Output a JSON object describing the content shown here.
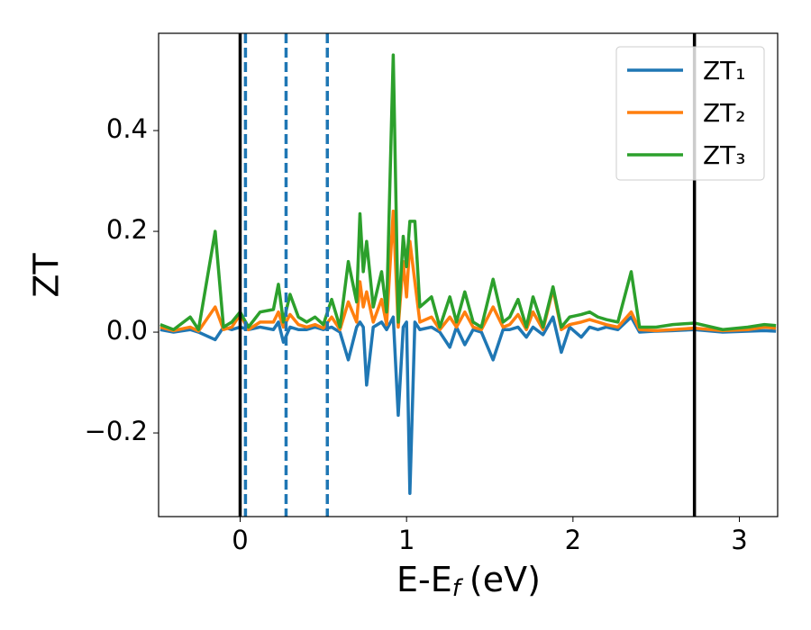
{
  "chart_data": {
    "type": "line",
    "y_label": "ZT",
    "x_label_parts": {
      "main": "E-E",
      "sub": "f",
      "unit": "(eV)"
    },
    "x": [
      -0.48,
      -0.4,
      -0.3,
      -0.25,
      -0.15,
      -0.1,
      -0.05,
      0,
      0.05,
      0.12,
      0.2,
      0.23,
      0.26,
      0.3,
      0.35,
      0.4,
      0.45,
      0.5,
      0.55,
      0.6,
      0.65,
      0.7,
      0.72,
      0.74,
      0.76,
      0.8,
      0.85,
      0.88,
      0.92,
      0.95,
      0.98,
      1.0,
      1.02,
      1.05,
      1.08,
      1.15,
      1.2,
      1.26,
      1.3,
      1.35,
      1.4,
      1.45,
      1.52,
      1.58,
      1.62,
      1.67,
      1.72,
      1.76,
      1.82,
      1.88,
      1.93,
      1.98,
      2.05,
      2.1,
      2.15,
      2.2,
      2.27,
      2.35,
      2.4,
      2.5,
      2.6,
      2.73,
      2.9,
      3.05,
      3.15,
      3.22
    ],
    "series": [
      {
        "name": "ZT₁",
        "color": "#1f77b4",
        "values": [
          0.005,
          0,
          0.005,
          0,
          -0.015,
          0.01,
          0.005,
          0.01,
          0.005,
          0.01,
          0.005,
          0.02,
          -0.02,
          0.01,
          0.005,
          0.005,
          0.01,
          0.005,
          0.01,
          0,
          -0.055,
          0.01,
          0.02,
          0.01,
          -0.105,
          0.01,
          0.02,
          0.005,
          0.03,
          -0.165,
          0.01,
          0.02,
          -0.32,
          0.02,
          0.005,
          0.01,
          0,
          -0.03,
          0.01,
          -0.025,
          0.005,
          0,
          -0.055,
          0.005,
          0.005,
          0.01,
          -0.01,
          0.01,
          -0.005,
          0.03,
          -0.04,
          0.01,
          -0.01,
          0.01,
          0.005,
          0.01,
          0.005,
          0.03,
          0,
          0.002,
          0.003,
          0.005,
          0,
          0.002,
          0.003,
          0.002
        ]
      },
      {
        "name": "ZT₂",
        "color": "#ff7f0e",
        "values": [
          0.01,
          0.003,
          0.01,
          0.002,
          0.05,
          0.005,
          0.01,
          0.035,
          0.005,
          0.02,
          0.02,
          0.04,
          0.01,
          0.035,
          0.015,
          0.01,
          0.015,
          0.008,
          0.03,
          0.005,
          0.06,
          0.02,
          0.1,
          0.05,
          0.08,
          0.02,
          0.065,
          0.015,
          0.24,
          0.01,
          0.14,
          0.07,
          0.18,
          0.1,
          0.02,
          0.03,
          0.005,
          0.03,
          0.01,
          0.04,
          0.01,
          0.005,
          0.05,
          0.01,
          0.015,
          0.035,
          0.005,
          0.04,
          0.005,
          0.085,
          0.005,
          0.015,
          0.02,
          0.025,
          0.02,
          0.015,
          0.01,
          0.04,
          0.005,
          0.003,
          0.005,
          0.008,
          0.003,
          0.005,
          0.01,
          0.008
        ]
      },
      {
        "name": "ZT₃",
        "color": "#2ca02c",
        "values": [
          0.015,
          0.005,
          0.03,
          0.005,
          0.2,
          0.01,
          0.02,
          0.04,
          0.01,
          0.04,
          0.045,
          0.095,
          0.02,
          0.075,
          0.03,
          0.02,
          0.03,
          0.015,
          0.065,
          0.01,
          0.14,
          0.06,
          0.235,
          0.12,
          0.18,
          0.05,
          0.12,
          0.04,
          0.55,
          0.02,
          0.19,
          0.13,
          0.22,
          0.22,
          0.05,
          0.07,
          0.01,
          0.07,
          0.02,
          0.08,
          0.02,
          0.01,
          0.105,
          0.02,
          0.03,
          0.065,
          0.01,
          0.07,
          0.01,
          0.09,
          0.01,
          0.03,
          0.035,
          0.04,
          0.03,
          0.025,
          0.02,
          0.12,
          0.01,
          0.01,
          0.015,
          0.018,
          0.005,
          0.01,
          0.015,
          0.013
        ]
      }
    ],
    "vlines": [
      {
        "x": 0,
        "color": "#000000",
        "style": "solid"
      },
      {
        "x": 2.73,
        "color": "#000000",
        "style": "solid"
      },
      {
        "x": 0.032,
        "color": "#1f77b4",
        "style": "dashed"
      },
      {
        "x": 0.276,
        "color": "#1f77b4",
        "style": "dashed"
      },
      {
        "x": 0.524,
        "color": "#1f77b4",
        "style": "dashed"
      }
    ],
    "xlim": [
      -0.49,
      3.23
    ],
    "xticks": [
      0,
      1,
      2,
      3
    ],
    "ylim": [
      -0.366,
      0.593
    ],
    "yticks": [
      {
        "value": -0.2,
        "label": "−0.2"
      },
      {
        "value": 0,
        "label": "0.0"
      },
      0.2,
      0.4
    ],
    "grid": false,
    "legend": "upper right"
  }
}
